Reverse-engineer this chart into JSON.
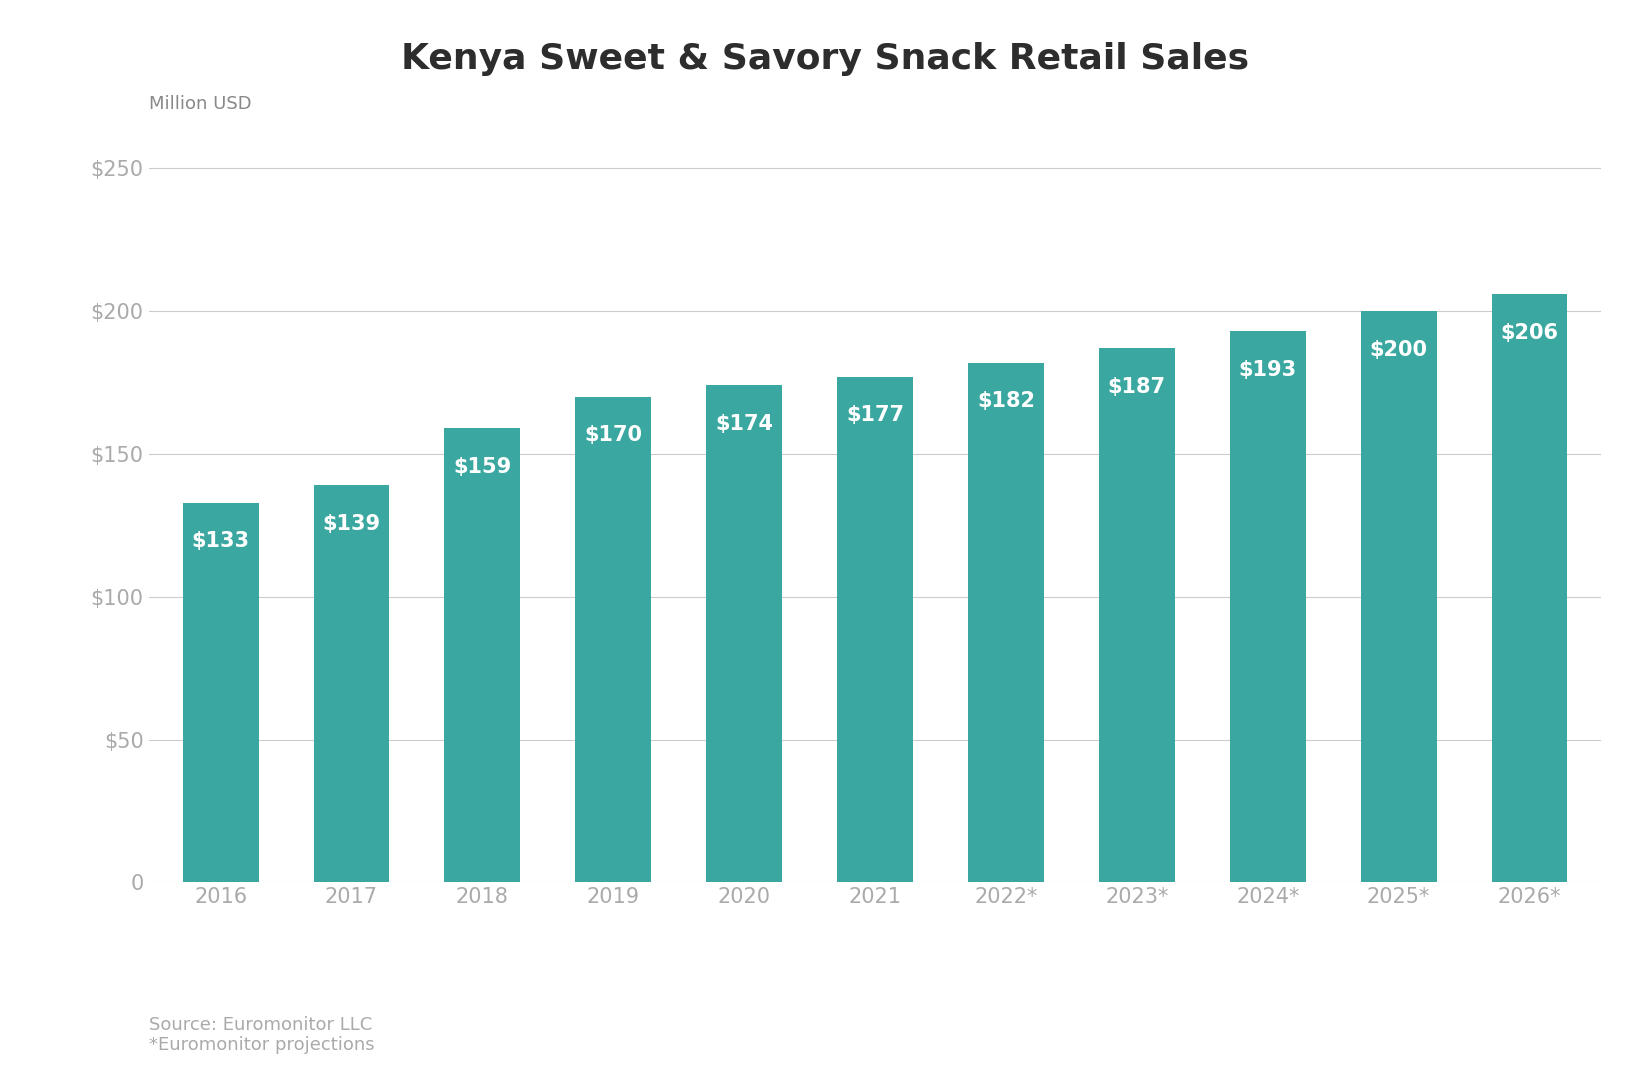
{
  "title": "Kenya Sweet & Savory Snack Retail Sales",
  "ylabel": "Million USD",
  "categories": [
    "2016",
    "2017",
    "2018",
    "2019",
    "2020",
    "2021",
    "2022*",
    "2023*",
    "2024*",
    "2025*",
    "2026*"
  ],
  "values": [
    133,
    139,
    159,
    170,
    174,
    177,
    182,
    187,
    193,
    200,
    206
  ],
  "bar_color": "#3aA8A0",
  "label_color": "#ffffff",
  "grid_color": "#cccccc",
  "tick_color": "#aaaaaa",
  "title_color": "#2d2d2d",
  "ylabel_color": "#888888",
  "background_color": "#ffffff",
  "ylim": [
    0,
    260
  ],
  "yticks": [
    0,
    50,
    100,
    150,
    200,
    250
  ],
  "ytick_labels": [
    "0",
    "$50",
    "$100",
    "$150",
    "$200",
    "$250"
  ],
  "source_text": "Source: Euromonitor LLC\n*Euromonitor projections",
  "title_fontsize": 26,
  "label_fontsize": 15,
  "tick_fontsize": 15,
  "ylabel_fontsize": 13,
  "source_fontsize": 13,
  "bar_width": 0.58
}
